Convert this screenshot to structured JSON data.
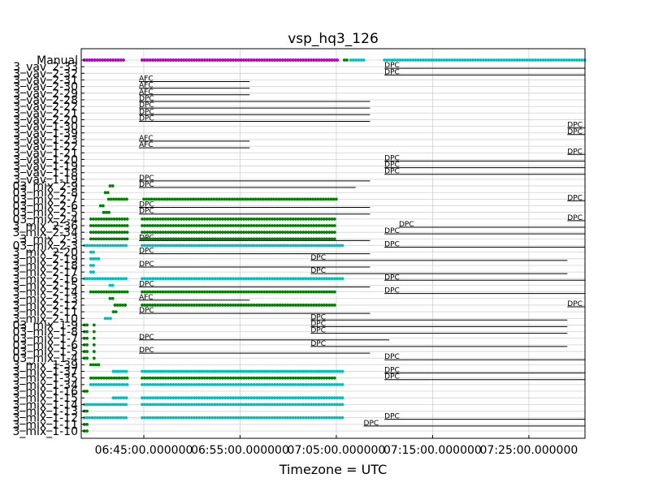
{
  "chart_data": {
    "type": "scatter",
    "title": "vsp_hq3_126",
    "xlabel": "Timezone = UTC",
    "ylabel": "",
    "x_ticks": [
      {
        "label": "06:45:00.000000",
        "time": "06:45"
      },
      {
        "label": "06:55:00.000000",
        "time": "06:55"
      },
      {
        "label": "07:05:00.000000",
        "time": "07:05"
      },
      {
        "label": "07:15:00.000000",
        "time": "07:15"
      },
      {
        "label": "07:25:00.000000",
        "time": "07:25"
      }
    ],
    "xlim": [
      "06:38:30",
      "07:30:50"
    ],
    "grid": true,
    "rows": [
      "Manual",
      "3_vav_2-33",
      "3_vav_2-32",
      "3_vav_2-31",
      "3_vav_2-30",
      "3_vav_2-29",
      "3_vav_2-28",
      "3_vav_2-22",
      "3_vav_2-21",
      "3_vav_2-20",
      "3_vav_1-30",
      "3_vav_1-39",
      "3_vav_1-23",
      "3_vav_1-22",
      "3_vav_1-21",
      "3_vav_1-20",
      "3_vav_1-19",
      "3_vav_1-18",
      "3_vav_1-19",
      "03_mix_2-9",
      "03_mix_2-8",
      "03_mix_2-7",
      "03_mix_2-6",
      "03_mix_2-5",
      "03_mix_2-4",
      "3_mix_2-36",
      "3_mix_2-34",
      "3_mix_2-3",
      "03_mix_2-3",
      "3_mix_2-20",
      "3_mix_2-19",
      "3_mix_2-18",
      "3_mix_2-17",
      "3_mix_2-16",
      "3_mix_2-15",
      "3_mix_2-14",
      "3_mix_2-13",
      "3_mix_2-12",
      "3_mix_2-11",
      "3_mix_2-10",
      "03_mix_1-9",
      "03_mix_1-8",
      "03_mix_1-7",
      "03_mix_1-6",
      "03_mix_1-5",
      "03_mix_1-4",
      "3_mix_1-39",
      "3_mix_1-37",
      "3_mix_1-35",
      "3_mix_1-34",
      "3_mix_1-16",
      "3_mix_1-15",
      "3_mix_1-14",
      "3_mix_1-13",
      "3_mix_1-12",
      "3_mix_1-11",
      "3_mix_1-10"
    ],
    "point_colors": {
      "blue": "#0000ff",
      "green": "#008000",
      "cyan": "#00bfbf",
      "purple": "#bf00bf"
    },
    "marker_series": [
      {
        "row": 0,
        "color": "blue",
        "ranges": [
          [
            "06:38:50",
            "06:43:00"
          ],
          [
            "06:44:50",
            "07:05:20"
          ]
        ]
      },
      {
        "row": 0,
        "color": "purple",
        "ranges": [
          [
            "06:38:50",
            "06:43:00"
          ],
          [
            "06:44:50",
            "07:05:20"
          ]
        ]
      },
      {
        "row": 0,
        "color": "green",
        "ranges": [
          [
            "07:05:50",
            "07:06:10"
          ]
        ]
      },
      {
        "row": 0,
        "color": "cyan",
        "ranges": [
          [
            "07:06:30",
            "07:08:00"
          ],
          [
            "07:10:00",
            "07:30:50"
          ]
        ]
      },
      {
        "row": 19,
        "color": "green",
        "ranges": [
          [
            "06:41:30",
            "06:42:00"
          ]
        ]
      },
      {
        "row": 20,
        "color": "green",
        "ranges": [
          [
            "06:41:00",
            "06:41:20"
          ]
        ]
      },
      {
        "row": 21,
        "color": "green",
        "ranges": [
          [
            "06:41:20",
            "06:43:20"
          ],
          [
            "06:45:00",
            "07:05:00"
          ]
        ]
      },
      {
        "row": 22,
        "color": "green",
        "ranges": [
          [
            "06:40:30",
            "06:41:00"
          ]
        ]
      },
      {
        "row": 23,
        "color": "green",
        "ranges": [
          [
            "06:40:50",
            "06:41:30"
          ]
        ]
      },
      {
        "row": 24,
        "color": "green",
        "ranges": [
          [
            "06:39:30",
            "06:43:20"
          ],
          [
            "06:44:50",
            "07:05:00"
          ]
        ]
      },
      {
        "row": 25,
        "color": "green",
        "ranges": [
          [
            "06:39:30",
            "06:43:20"
          ],
          [
            "06:44:50",
            "07:05:00"
          ]
        ]
      },
      {
        "row": 26,
        "color": "green",
        "ranges": [
          [
            "06:39:30",
            "06:43:20"
          ],
          [
            "06:44:50",
            "07:05:00"
          ]
        ]
      },
      {
        "row": 27,
        "color": "green",
        "ranges": [
          [
            "06:39:30",
            "06:43:20"
          ],
          [
            "06:44:50",
            "07:05:00"
          ]
        ]
      },
      {
        "row": 28,
        "color": "cyan",
        "ranges": [
          [
            "06:38:50",
            "06:43:20"
          ],
          [
            "06:44:50",
            "07:05:50"
          ]
        ]
      },
      {
        "row": 29,
        "color": "cyan",
        "ranges": [
          [
            "06:39:30",
            "06:40:00"
          ]
        ]
      },
      {
        "row": 30,
        "color": "cyan",
        "ranges": [
          [
            "06:39:30",
            "06:40:30"
          ]
        ]
      },
      {
        "row": 31,
        "color": "cyan",
        "ranges": [
          [
            "06:39:30",
            "06:40:00"
          ]
        ]
      },
      {
        "row": 32,
        "color": "cyan",
        "ranges": [
          [
            "06:39:30",
            "06:40:00"
          ]
        ]
      },
      {
        "row": 33,
        "color": "cyan",
        "ranges": [
          [
            "06:38:50",
            "06:43:20"
          ],
          [
            "06:44:50",
            "07:05:50"
          ]
        ]
      },
      {
        "row": 34,
        "color": "cyan",
        "ranges": [
          [
            "06:41:30",
            "06:42:00"
          ]
        ]
      },
      {
        "row": 35,
        "color": "green",
        "ranges": [
          [
            "06:39:30",
            "06:43:20"
          ],
          [
            "06:44:50",
            "07:05:00"
          ]
        ]
      },
      {
        "row": 36,
        "color": "green",
        "ranges": [
          [
            "06:41:30",
            "06:42:00"
          ]
        ]
      },
      {
        "row": 37,
        "color": "green",
        "ranges": [
          [
            "06:42:00",
            "06:43:20"
          ],
          [
            "06:44:50",
            "07:05:00"
          ]
        ]
      },
      {
        "row": 38,
        "color": "green",
        "ranges": [
          [
            "06:41:50",
            "06:42:20"
          ]
        ]
      },
      {
        "row": 39,
        "color": "cyan",
        "ranges": [
          [
            "06:41:00",
            "06:41:40"
          ]
        ]
      },
      {
        "row": 40,
        "color": "green",
        "ranges": [
          [
            "06:38:50",
            "06:39:20"
          ],
          [
            "06:39:50",
            "06:40:00"
          ]
        ]
      },
      {
        "row": 41,
        "color": "green",
        "ranges": [
          [
            "06:38:50",
            "06:39:20"
          ],
          [
            "06:39:50",
            "06:40:00"
          ]
        ]
      },
      {
        "row": 42,
        "color": "green",
        "ranges": [
          [
            "06:38:50",
            "06:39:20"
          ],
          [
            "06:39:50",
            "06:40:00"
          ]
        ]
      },
      {
        "row": 43,
        "color": "green",
        "ranges": [
          [
            "06:38:50",
            "06:39:20"
          ],
          [
            "06:39:50",
            "06:40:00"
          ]
        ]
      },
      {
        "row": 44,
        "color": "green",
        "ranges": [
          [
            "06:38:50",
            "06:39:20"
          ],
          [
            "06:39:50",
            "06:40:00"
          ]
        ]
      },
      {
        "row": 45,
        "color": "green",
        "ranges": [
          [
            "06:38:50",
            "06:39:20"
          ],
          [
            "06:39:50",
            "06:40:00"
          ]
        ]
      },
      {
        "row": 46,
        "color": "green",
        "ranges": [
          [
            "06:39:30",
            "06:40:20"
          ]
        ]
      },
      {
        "row": 47,
        "color": "cyan",
        "ranges": [
          [
            "06:41:50",
            "06:43:20"
          ],
          [
            "06:44:50",
            "07:05:50"
          ]
        ]
      },
      {
        "row": 48,
        "color": "green",
        "ranges": [
          [
            "06:39:30",
            "06:43:20"
          ],
          [
            "06:44:50",
            "07:05:00"
          ]
        ]
      },
      {
        "row": 49,
        "color": "cyan",
        "ranges": [
          [
            "06:39:30",
            "06:43:20"
          ],
          [
            "06:44:50",
            "07:05:50"
          ]
        ]
      },
      {
        "row": 50,
        "color": "green",
        "ranges": [
          [
            "06:38:50",
            "06:39:20"
          ]
        ]
      },
      {
        "row": 51,
        "color": "cyan",
        "ranges": [
          [
            "06:41:50",
            "06:43:20"
          ],
          [
            "06:44:50",
            "07:05:50"
          ]
        ]
      },
      {
        "row": 52,
        "color": "cyan",
        "ranges": [
          [
            "06:38:50",
            "06:43:20"
          ],
          [
            "06:44:50",
            "07:05:50"
          ]
        ]
      },
      {
        "row": 53,
        "color": "green",
        "ranges": [
          [
            "06:38:50",
            "06:39:20"
          ]
        ]
      },
      {
        "row": 54,
        "color": "cyan",
        "ranges": [
          [
            "06:38:50",
            "06:43:20"
          ],
          [
            "06:44:50",
            "07:05:50"
          ]
        ]
      },
      {
        "row": 55,
        "color": "green",
        "ranges": [
          [
            "06:38:50",
            "06:39:20"
          ]
        ]
      },
      {
        "row": 56,
        "color": "green",
        "ranges": [
          [
            "06:38:50",
            "06:39:20"
          ]
        ]
      }
    ],
    "segments": [
      {
        "row": 1,
        "label": "DPC",
        "start": "07:10:00",
        "end": "07:30:50"
      },
      {
        "row": 2,
        "label": "DPC",
        "start": "07:10:00",
        "end": "07:30:50"
      },
      {
        "row": 3,
        "label": "AFC",
        "start": "06:44:30",
        "end": "06:56:00"
      },
      {
        "row": 4,
        "label": "AFC",
        "start": "06:44:30",
        "end": "06:56:00"
      },
      {
        "row": 5,
        "label": "AFC",
        "start": "06:44:30",
        "end": "06:56:00"
      },
      {
        "row": 6,
        "label": "DPC",
        "start": "06:44:30",
        "end": "07:08:30"
      },
      {
        "row": 7,
        "label": "DPC",
        "start": "06:44:30",
        "end": "07:08:30"
      },
      {
        "row": 8,
        "label": "DPC",
        "start": "06:44:30",
        "end": "07:08:30"
      },
      {
        "row": 9,
        "label": "DPC",
        "start": "06:44:30",
        "end": "07:08:30"
      },
      {
        "row": 10,
        "label": "DPC",
        "start": "07:29:00",
        "end": "07:30:50"
      },
      {
        "row": 11,
        "label": "DPC",
        "start": "07:29:00",
        "end": "07:30:50"
      },
      {
        "row": 12,
        "label": "AFC",
        "start": "06:44:30",
        "end": "06:56:00"
      },
      {
        "row": 13,
        "label": "AFC",
        "start": "06:44:30",
        "end": "06:56:00"
      },
      {
        "row": 14,
        "label": "DPC",
        "start": "07:29:00",
        "end": "07:30:50"
      },
      {
        "row": 15,
        "label": "DPC",
        "start": "07:10:00",
        "end": "07:30:50"
      },
      {
        "row": 16,
        "label": "DPC",
        "start": "07:10:00",
        "end": "07:30:50"
      },
      {
        "row": 17,
        "label": "DPC",
        "start": "07:10:00",
        "end": "07:30:50"
      },
      {
        "row": 18,
        "label": "DPC",
        "start": "06:44:30",
        "end": "07:08:30"
      },
      {
        "row": 19,
        "label": "DPC",
        "start": "06:44:30",
        "end": "07:07:00"
      },
      {
        "row": 21,
        "label": "DPC",
        "start": "07:29:00",
        "end": "07:30:50"
      },
      {
        "row": 22,
        "label": "DPC",
        "start": "06:44:30",
        "end": "07:08:30"
      },
      {
        "row": 23,
        "label": "DPC",
        "start": "06:44:30",
        "end": "07:08:30"
      },
      {
        "row": 24,
        "label": "DPC",
        "start": "07:29:00",
        "end": "07:30:50"
      },
      {
        "row": 25,
        "label": "DPC",
        "start": "07:11:30",
        "end": "07:30:50"
      },
      {
        "row": 26,
        "label": "DPC",
        "start": "07:10:00",
        "end": "07:30:50"
      },
      {
        "row": 27,
        "label": "DPC",
        "start": "06:44:30",
        "end": "07:08:30"
      },
      {
        "row": 28,
        "label": "DPC",
        "start": "07:10:00",
        "end": "07:30:50"
      },
      {
        "row": 29,
        "label": "DPC",
        "start": "06:44:30",
        "end": "07:08:30"
      },
      {
        "row": 30,
        "label": "DPC",
        "start": "07:02:20",
        "end": "07:29:00"
      },
      {
        "row": 31,
        "label": "DPC",
        "start": "06:44:30",
        "end": "07:08:30"
      },
      {
        "row": 32,
        "label": "DPC",
        "start": "07:02:20",
        "end": "07:29:00"
      },
      {
        "row": 33,
        "label": "DPC",
        "start": "07:10:00",
        "end": "07:30:50"
      },
      {
        "row": 34,
        "label": "DPC",
        "start": "06:44:30",
        "end": "07:08:30"
      },
      {
        "row": 35,
        "label": "DPC",
        "start": "07:10:00",
        "end": "07:30:50"
      },
      {
        "row": 36,
        "label": "AFC",
        "start": "06:44:30",
        "end": "06:56:00"
      },
      {
        "row": 37,
        "label": "DPC",
        "start": "07:29:00",
        "end": "07:30:50"
      },
      {
        "row": 38,
        "label": "DPC",
        "start": "06:44:30",
        "end": "07:08:30"
      },
      {
        "row": 39,
        "label": "DPC",
        "start": "07:02:20",
        "end": "07:29:00"
      },
      {
        "row": 40,
        "label": "DPC",
        "start": "07:02:20",
        "end": "07:29:00"
      },
      {
        "row": 41,
        "label": "DPC",
        "start": "07:02:20",
        "end": "07:29:00"
      },
      {
        "row": 42,
        "label": "DPC",
        "start": "06:44:30",
        "end": "07:10:30"
      },
      {
        "row": 43,
        "label": "DPC",
        "start": "07:02:20",
        "end": "07:29:00"
      },
      {
        "row": 44,
        "label": "DPC",
        "start": "06:44:30",
        "end": "07:08:30"
      },
      {
        "row": 45,
        "label": "DPC",
        "start": "07:10:00",
        "end": "07:30:50"
      },
      {
        "row": 47,
        "label": "DPC",
        "start": "07:10:00",
        "end": "07:30:50"
      },
      {
        "row": 48,
        "label": "DPC",
        "start": "07:10:00",
        "end": "07:30:50"
      },
      {
        "row": 54,
        "label": "DPC",
        "start": "07:10:00",
        "end": "07:30:50"
      },
      {
        "row": 55,
        "label": "DPC",
        "start": "07:07:50",
        "end": "07:30:50"
      }
    ]
  }
}
